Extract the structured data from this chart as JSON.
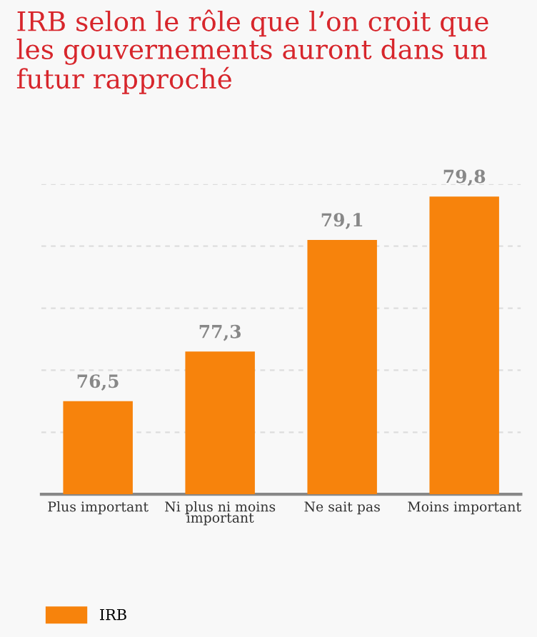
{
  "chart_data": {
    "type": "bar",
    "title": "IRB selon le rôle que l’on croit que les gouvernements auront dans un futur rapproché",
    "categories": [
      "Plus important",
      "Ni plus ni moins\nimportant",
      "Ne sait pas",
      "Moins important"
    ],
    "series": [
      {
        "name": "IRB",
        "color": "#f7830c",
        "values": [
          76.5,
          77.3,
          79.1,
          79.8
        ],
        "value_labels": [
          "76,5",
          "77,3",
          "79,1",
          "79,8"
        ]
      }
    ],
    "ylim": [
      75,
      80
    ],
    "yticks": [
      {
        "value": 76,
        "label": null
      },
      {
        "value": 77,
        "label": null
      },
      {
        "value": 78,
        "label": null
      },
      {
        "value": 79,
        "label": null
      },
      {
        "value": 80,
        "label": null
      }
    ],
    "tick_labels": "x",
    "grid": "y",
    "legend": "bottom left"
  }
}
